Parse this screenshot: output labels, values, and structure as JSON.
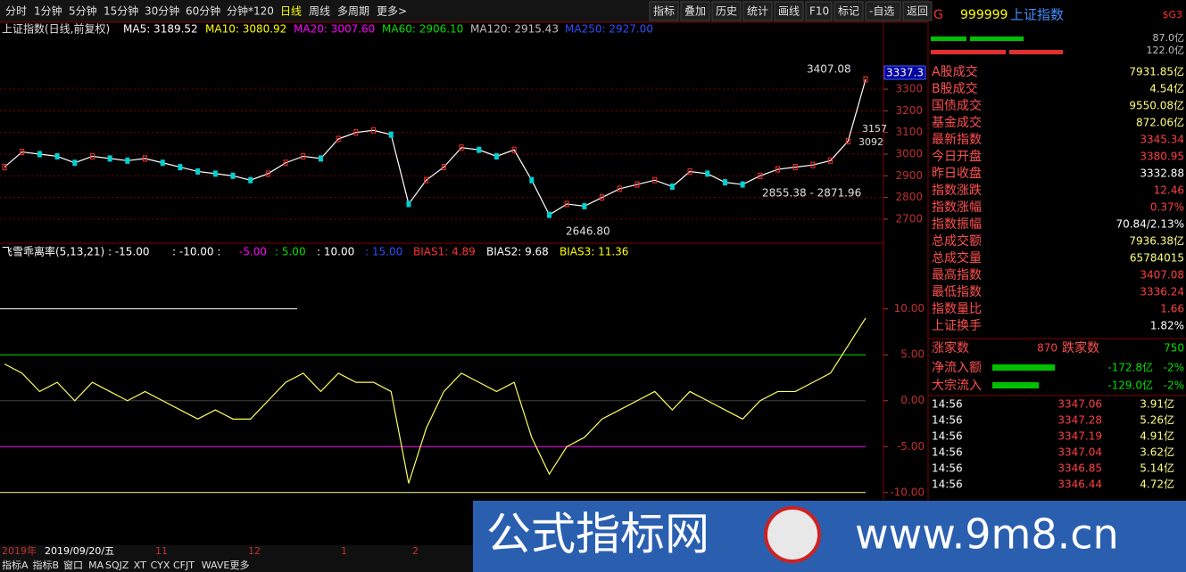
{
  "toolbar": {
    "tabs": [
      "分时",
      "1分钟",
      "5分钟",
      "15分钟",
      "30分钟",
      "60分钟",
      "分钟*120",
      "日线",
      "周线",
      "多周期",
      "更多>"
    ],
    "buttons": [
      "指标",
      "叠加",
      "历史",
      "统计",
      "画线",
      "F10",
      "标记",
      "-自选",
      "返回"
    ]
  },
  "main": {
    "title": "上证指数(日线,前复权)",
    "ma": [
      {
        "text": "MA5: 3189.52",
        "color": "#ffffff"
      },
      {
        "text": "MA10: 3080.92",
        "color": "#ffff00"
      },
      {
        "text": "MA20: 3007.60",
        "color": "#ff00ff"
      },
      {
        "text": "MA60: 2906.10",
        "color": "#00e000"
      },
      {
        "text": "MA120: 2915.43",
        "color": "#c0c0c0"
      },
      {
        "text": "MA250: 2927.00",
        "color": "#3050ff"
      }
    ],
    "ylim": [
      2593,
      3588
    ],
    "yticks": [
      3300,
      3200,
      3100,
      3000,
      2900,
      2800,
      2700
    ],
    "closes": [
      2940,
      3010,
      3000,
      2990,
      2960,
      2990,
      2980,
      2970,
      2980,
      2960,
      2940,
      2920,
      2910,
      2900,
      2880,
      2910,
      2960,
      2990,
      2980,
      3070,
      3100,
      3110,
      3090,
      2770,
      2880,
      2940,
      3030,
      3020,
      2990,
      3020,
      2880,
      2720,
      2770,
      2760,
      2800,
      2840,
      2860,
      2880,
      2850,
      2920,
      2910,
      2870,
      2860,
      2900,
      2930,
      2940,
      2950,
      2970,
      3060,
      3345
    ],
    "high_label": "3407.08",
    "low_label": "2646.80",
    "range_label": "2855.38 - 2871.96",
    "price_tag": "3337.3",
    "mark1": "3157",
    "mark2": "3092"
  },
  "indicator": {
    "parts": [
      {
        "text": "飞雪乖离率(5,13,21) : -15.00",
        "color": "#ffffff"
      },
      {
        "text": ": -10.00 :",
        "color": "#ffffff"
      },
      {
        "text": "-5.00",
        "color": "#ff00ff"
      },
      {
        "text": ": 5.00",
        "color": "#00e000"
      },
      {
        "text": ": 10.00",
        "color": "#ffffff"
      },
      {
        "text": ": 15.00",
        "color": "#3050ff"
      },
      {
        "text": "BIAS1: 4.89",
        "color": "#ff3030"
      },
      {
        "text": "BIAS2: 9.68",
        "color": "#ffffff"
      },
      {
        "text": "BIAS3: 11.36",
        "color": "#ffff00"
      }
    ],
    "ylim": [
      -10.7,
      15.5
    ],
    "yticks": [
      {
        "value": 10,
        "label": "10.00"
      },
      {
        "value": 5,
        "label": "5.00"
      },
      {
        "value": 0,
        "label": "0.00"
      },
      {
        "value": -5,
        "label": "-5.00"
      },
      {
        "value": -10,
        "label": "-10.00"
      }
    ],
    "bias": [
      4,
      3,
      1,
      2,
      0,
      2,
      1,
      0,
      1,
      0,
      -1,
      -2,
      -1,
      -2,
      -2,
      0,
      2,
      3,
      1,
      3,
      2,
      2,
      1,
      -9,
      -3,
      1,
      3,
      2,
      1,
      2,
      -4,
      -8,
      -5,
      -4,
      -2,
      -1,
      0,
      1,
      -1,
      1,
      0,
      -1,
      -2,
      0,
      1,
      1,
      2,
      3,
      6,
      9
    ]
  },
  "dates": [
    "2019年",
    "2019/09/20/五",
    "11",
    "12",
    "1",
    "2"
  ],
  "bottom_tabs": [
    "指标A",
    "指标B",
    "窗口",
    "MA",
    "SQJZ",
    "XT",
    "CYX",
    "CFJT",
    "WAVE",
    "更多"
  ],
  "panel": {
    "flag": "G",
    "code": "999999",
    "name": "上证指数",
    "tag": "$G3",
    "bar1": "87.0亿",
    "bar2": "122.0亿",
    "rows": [
      {
        "label": "A股成交",
        "value": "7931.85亿",
        "color": "#ffff80"
      },
      {
        "label": "B股成交",
        "value": "4.54亿",
        "color": "#ffff80"
      },
      {
        "label": "国债成交",
        "value": "9550.08亿",
        "color": "#ffff80"
      },
      {
        "label": "基金成交",
        "value": "872.06亿",
        "color": "#ffff80"
      },
      {
        "label": "最新指数",
        "value": "3345.34",
        "color": "#ff4040"
      },
      {
        "label": "今日开盘",
        "value": "3380.95",
        "color": "#ff4040"
      },
      {
        "label": "昨日收盘",
        "value": "3332.88",
        "color": "#ffffff"
      },
      {
        "label": "指数涨跌",
        "value": "12.46",
        "color": "#ff4040"
      },
      {
        "label": "指数涨幅",
        "value": "0.37%",
        "color": "#ff4040"
      },
      {
        "label": "指数振幅",
        "value": "70.84/2.13%",
        "color": "#ffffff"
      },
      {
        "label": "总成交额",
        "value": "7936.38亿",
        "color": "#ffff80"
      },
      {
        "label": "总成交量",
        "value": "65784015",
        "color": "#ffff80"
      },
      {
        "label": "最高指数",
        "value": "3407.08",
        "color": "#ff4040"
      },
      {
        "label": "最低指数",
        "value": "3336.24",
        "color": "#ff4040"
      },
      {
        "label": "指数量比",
        "value": "1.66",
        "color": "#ff4040"
      },
      {
        "label": "上证换手",
        "value": "1.82%",
        "color": "#ffffff"
      }
    ],
    "up_label": "涨家数",
    "up": "870",
    "down_label": "跌家数",
    "down": "750",
    "flows": [
      {
        "label": "净流入额",
        "value": "-172.8亿",
        "pct": "-2%"
      },
      {
        "label": "大宗流入",
        "value": "-129.0亿",
        "pct": "-2%"
      }
    ],
    "trades": [
      [
        "14:56",
        "3347.06",
        "3.91亿"
      ],
      [
        "14:56",
        "3347.28",
        "5.26亿"
      ],
      [
        "14:56",
        "3347.19",
        "4.91亿"
      ],
      [
        "14:56",
        "3347.04",
        "3.62亿"
      ],
      [
        "14:56",
        "3346.85",
        "5.14亿"
      ],
      [
        "14:56",
        "3346.44",
        "4.72亿"
      ]
    ]
  },
  "watermark": {
    "text": "公式指标网",
    "url": "www.9m8.cn"
  }
}
